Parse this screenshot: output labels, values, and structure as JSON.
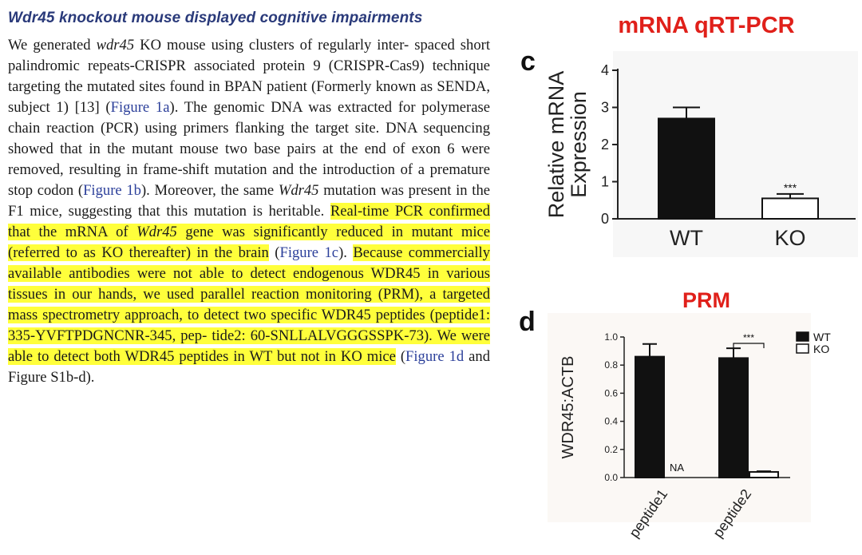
{
  "article": {
    "heading": "Wdr45 knockout mouse displayed cognitive impairments",
    "p": {
      "s1": "We generated ",
      "s2": "wdr45",
      "s3": " KO mouse using clusters of regularly inter- spaced short palindromic repeats-CRISPR associated protein 9 (CRISPR-Cas9) technique targeting the mutated sites found in BPAN patient (Formerly known as SENDA, subject 1) [13] (",
      "link1": "Figure 1a",
      "s4": "). The genomic DNA was extracted for polymerase chain reaction (PCR) using primers flanking the target site. DNA sequencing showed that in the mutant mouse two base pairs at the end of exon 6 were removed, resulting in frame-shift mutation and the introduction of a premature stop codon (",
      "link2": "Figure 1b",
      "s5": "). Moreover, the same ",
      "s6": "Wdr45",
      "s7": " mutation was present in the F1 mice, suggesting that this mutation is heritable. ",
      "h1": "Real-time PCR confirmed that the mRNA of ",
      "h2": "Wdr45",
      "h3": " gene was significantly reduced in mutant mice (referred to as KO thereafter) in the brain",
      "s8": " (",
      "link3": "Figure 1c",
      "s9": "). ",
      "h4": "Because commercially available antibodies were not able to detect endogenous WDR45 in various tissues in our hands, we used parallel reaction monitoring (PRM), a targeted mass spectrometry approach, to detect two specific WDR45 peptides (peptide1: 335-YVFTPDGNCNR-345, pep- tide2: 60-SNLLALVGGGSSPK-73). We were able to detect both WDR45 peptides in WT but not in KO mice",
      "s10": " (",
      "link4": "Figure 1d",
      "s11": " and Figure S1b-d)."
    }
  },
  "annotations": {
    "mrna": "mRNA qRT-PCR",
    "prm": "PRM"
  },
  "panels": {
    "c": "c",
    "d": "d"
  },
  "colors": {
    "highlight": "#ffff3b",
    "annotation_red": "#e0201a",
    "heading_blue": "#2a3a7a",
    "bar_black": "#111111"
  },
  "chart_data": [
    {
      "panel": "c",
      "type": "bar",
      "ylabel": [
        "Relative mRNA",
        "Expression"
      ],
      "ylim": [
        0,
        4
      ],
      "yticks": [
        "0",
        "1",
        "2",
        "3",
        "4"
      ],
      "categories": [
        "WT",
        "KO"
      ],
      "values": [
        2.7,
        0.55
      ],
      "errors": [
        0.3,
        0.12
      ],
      "fills": [
        "#111111",
        "#ffffff"
      ],
      "significance": [
        "",
        "***"
      ]
    },
    {
      "panel": "d",
      "type": "bar",
      "ylabel": "WDR45:ACTB",
      "ylim": [
        0,
        1.0
      ],
      "yticks": [
        "0.0",
        "0.2",
        "0.4",
        "0.6",
        "0.8",
        "1.0"
      ],
      "categories": [
        "peptide1",
        "peptide2"
      ],
      "series": [
        {
          "name": "WT",
          "values": [
            0.86,
            0.85
          ],
          "errors": [
            0.09,
            0.07
          ],
          "fill": "#111111"
        },
        {
          "name": "KO",
          "values": [
            0,
            0.04
          ],
          "errors": [
            0,
            0.005
          ],
          "fill": "#ffffff"
        }
      ],
      "annotations": {
        "na": "NA",
        "significance": "***"
      },
      "legend": "top-right"
    }
  ]
}
